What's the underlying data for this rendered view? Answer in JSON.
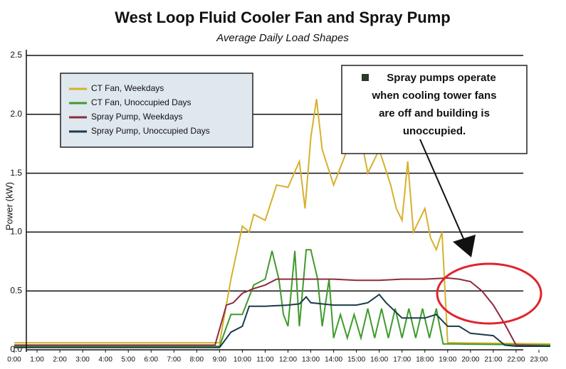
{
  "chart_data": {
    "type": "line",
    "title": "West Loop Fluid Cooler Fan and Spray Pump",
    "subtitle": "Average Daily Load Shapes",
    "y_label": "Power (kW)",
    "xlim": [
      0,
      24
    ],
    "ylim": [
      0,
      2.5
    ],
    "xticks": [
      {
        "value": 0,
        "label": "0:00"
      },
      {
        "value": 1,
        "label": "1:00"
      },
      {
        "value": 2,
        "label": "2:00"
      },
      {
        "value": 3,
        "label": "3:00"
      },
      {
        "value": 4,
        "label": "4:00"
      },
      {
        "value": 5,
        "label": "5:00"
      },
      {
        "value": 6,
        "label": "6:00"
      },
      {
        "value": 7,
        "label": "7:00"
      },
      {
        "value": 8,
        "label": "8:00"
      },
      {
        "value": 9,
        "label": "9:00"
      },
      {
        "value": 10,
        "label": "10:00"
      },
      {
        "value": 11,
        "label": "11:00"
      },
      {
        "value": 12,
        "label": "12:00"
      },
      {
        "value": 13,
        "label": "13:00"
      },
      {
        "value": 14,
        "label": "14:00"
      },
      {
        "value": 15,
        "label": "15:00"
      },
      {
        "value": 16,
        "label": "16:00"
      },
      {
        "value": 17,
        "label": "17:00"
      },
      {
        "value": 18,
        "label": "18:00"
      },
      {
        "value": 19,
        "label": "19:00"
      },
      {
        "value": 20,
        "label": "20:00"
      },
      {
        "value": 21,
        "label": "21:00"
      },
      {
        "value": 22,
        "label": "22:00"
      },
      {
        "value": 23,
        "label": "23:00"
      }
    ],
    "yticks": [
      {
        "value": 0,
        "label": "0.0"
      },
      0.5,
      {
        "value": 1,
        "label": "1.0"
      },
      1.5,
      {
        "value": 2,
        "label": "2.0"
      },
      2.5
    ],
    "grid": true,
    "annotation": [
      "Spray pumps operate",
      "when cooling tower fans",
      "are off and building is",
      "unoccupied."
    ],
    "series": [
      {
        "name": "CT Fan, Weekdays",
        "color": "#d6b12c",
        "x": [
          0,
          9.0,
          9.5,
          10.0,
          10.3,
          10.5,
          11.0,
          11.5,
          12.0,
          12.5,
          12.75,
          13.0,
          13.25,
          13.5,
          14.0,
          14.5,
          15.0,
          15.25,
          15.5,
          16.0,
          16.5,
          16.75,
          17.0,
          17.25,
          17.5,
          18.0,
          18.25,
          18.5,
          18.75,
          19.0,
          23.5
        ],
        "values": [
          0.06,
          0.06,
          0.6,
          1.05,
          1.0,
          1.15,
          1.1,
          1.4,
          1.38,
          1.6,
          1.2,
          1.8,
          2.13,
          1.7,
          1.4,
          1.65,
          1.95,
          1.75,
          1.5,
          1.7,
          1.4,
          1.2,
          1.1,
          1.6,
          1.0,
          1.2,
          0.95,
          0.85,
          1.0,
          0.06,
          0.05
        ]
      },
      {
        "name": "CT Fan, Unoccupied Days",
        "color": "#3f9b2c",
        "x": [
          0,
          9.0,
          9.5,
          10.0,
          10.5,
          11.0,
          11.3,
          11.6,
          11.8,
          12.0,
          12.3,
          12.5,
          12.8,
          13.0,
          13.3,
          13.5,
          13.8,
          14.0,
          14.3,
          14.6,
          14.9,
          15.2,
          15.5,
          15.8,
          16.1,
          16.4,
          16.7,
          17.0,
          17.3,
          17.6,
          17.9,
          18.2,
          18.5,
          18.8,
          19.0,
          23.5
        ],
        "values": [
          0.03,
          0.03,
          0.3,
          0.3,
          0.55,
          0.6,
          0.84,
          0.6,
          0.3,
          0.2,
          0.84,
          0.2,
          0.85,
          0.85,
          0.6,
          0.2,
          0.6,
          0.1,
          0.3,
          0.1,
          0.3,
          0.1,
          0.35,
          0.1,
          0.35,
          0.1,
          0.35,
          0.1,
          0.35,
          0.1,
          0.35,
          0.1,
          0.35,
          0.05,
          0.05,
          0.04
        ]
      },
      {
        "name": "Spray Pump, Weekdays",
        "color": "#8c2b3c",
        "x": [
          0,
          8.8,
          9.3,
          9.6,
          10.0,
          10.5,
          11.0,
          11.5,
          12.0,
          13.0,
          14.0,
          15.0,
          16.0,
          17.0,
          18.0,
          19.0,
          19.5,
          20.0,
          20.5,
          21.0,
          21.5,
          22.0,
          23.5
        ],
        "values": [
          0.04,
          0.04,
          0.38,
          0.4,
          0.48,
          0.52,
          0.55,
          0.6,
          0.6,
          0.6,
          0.6,
          0.59,
          0.59,
          0.6,
          0.6,
          0.61,
          0.6,
          0.58,
          0.5,
          0.38,
          0.22,
          0.04,
          0.03
        ]
      },
      {
        "name": "Spray Pump, Unoccupied Days",
        "color": "#1b3b4b",
        "x": [
          0,
          9.0,
          9.5,
          10.0,
          10.3,
          11.0,
          12.0,
          12.5,
          12.8,
          13.0,
          14.0,
          15.0,
          15.5,
          16.0,
          16.3,
          17.0,
          18.0,
          18.5,
          19.0,
          19.5,
          20.0,
          21.0,
          21.5,
          22.0,
          23.5
        ],
        "values": [
          0.02,
          0.02,
          0.15,
          0.2,
          0.37,
          0.37,
          0.38,
          0.39,
          0.45,
          0.4,
          0.38,
          0.38,
          0.4,
          0.47,
          0.4,
          0.27,
          0.27,
          0.3,
          0.2,
          0.2,
          0.14,
          0.12,
          0.04,
          0.03,
          0.03
        ]
      }
    ]
  }
}
